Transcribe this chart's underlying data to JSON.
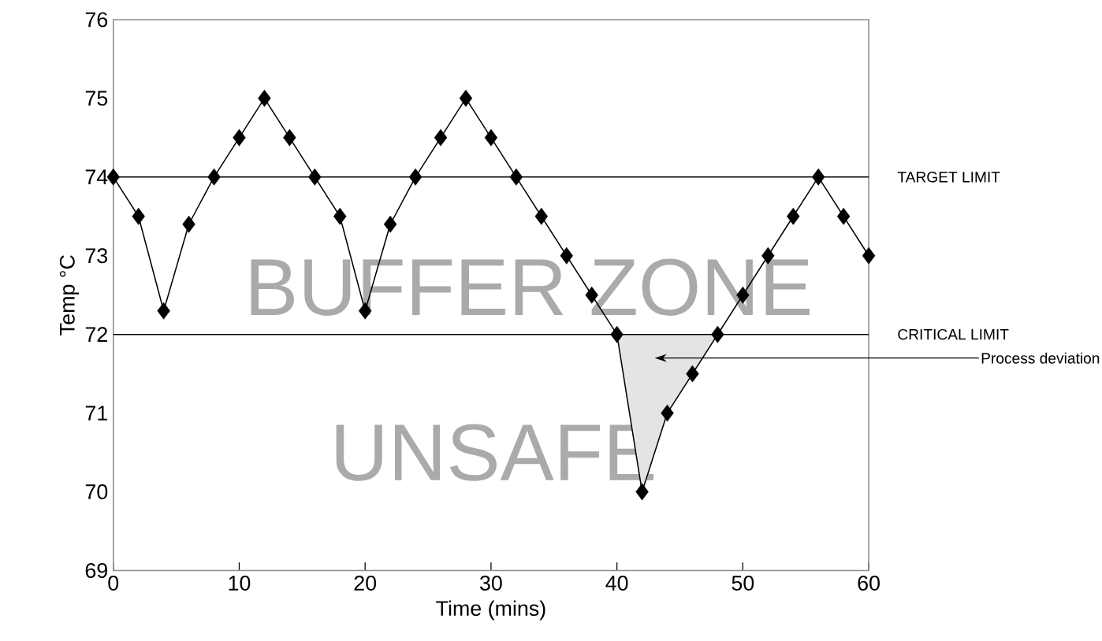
{
  "chart_data": {
    "type": "line",
    "xlabel": "Time (mins)",
    "ylabel": "Temp °C",
    "xlim": [
      0,
      60
    ],
    "ylim": [
      69,
      76
    ],
    "xticks": [
      0,
      10,
      20,
      30,
      40,
      50,
      60
    ],
    "yticks": [
      69,
      70,
      71,
      72,
      73,
      74,
      75,
      76
    ],
    "marker": "diamond",
    "line_style": "solid",
    "series": [
      {
        "color": "#000000",
        "x": [
          0,
          2,
          4,
          6,
          8,
          10,
          12,
          14,
          16,
          18,
          20,
          22,
          24,
          26,
          28,
          30,
          32,
          34,
          36,
          38,
          40,
          42,
          44,
          46,
          48,
          50,
          52,
          54,
          56,
          58,
          60
        ],
        "values": [
          74,
          73.5,
          72.3,
          73.4,
          74,
          74.5,
          75,
          74.5,
          74,
          73.5,
          72.3,
          73.4,
          74,
          74.5,
          75,
          74.5,
          74,
          73.5,
          73,
          72.5,
          72,
          70,
          71,
          71.5,
          72,
          72.5,
          73,
          73.5,
          74,
          73.5,
          73
        ],
        "lower": [
          null,
          null,
          null,
          null,
          null,
          null,
          null,
          null,
          null,
          null,
          null,
          null,
          null,
          null,
          null,
          null,
          null,
          null,
          null,
          null,
          72,
          70,
          71,
          71.5,
          72,
          null,
          null,
          null,
          null,
          null,
          null
        ],
        "upper": [
          null,
          null,
          null,
          null,
          null,
          null,
          null,
          null,
          null,
          null,
          null,
          null,
          null,
          null,
          null,
          null,
          null,
          null,
          null,
          null,
          72,
          72,
          72,
          72,
          72,
          null,
          null,
          null,
          null,
          null,
          null
        ]
      }
    ],
    "ref_lines": [
      {
        "axis": "y",
        "value": 74,
        "label": "TARGET LIMIT",
        "color": "#000000"
      },
      {
        "axis": "y",
        "value": 72,
        "label": "CRITICAL LIMIT",
        "color": "#000000"
      }
    ],
    "annotations": [
      "BUFFER ZONE",
      "UNSAFE",
      "Process deviation"
    ]
  }
}
